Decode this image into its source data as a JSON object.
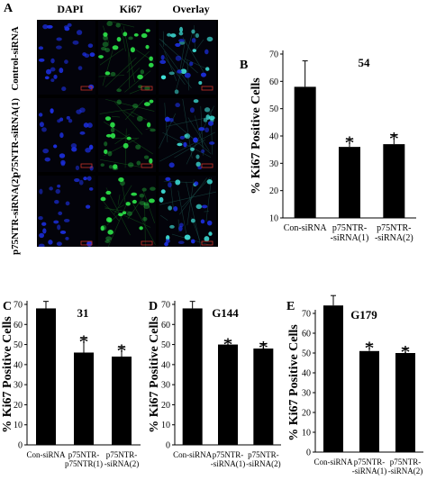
{
  "panel_a": {
    "letter": "A",
    "columns": [
      "DAPI",
      "Ki67",
      "Overlay"
    ],
    "rows": [
      "Control-siRNA",
      "p75NTR-siRNA(1)",
      "p75NTR-siRNA(2)"
    ],
    "colors": {
      "dapi": "#1c2fe0",
      "ki67": "#2ee84a",
      "overlay": "#3fe0d8"
    }
  },
  "chart_data": [
    {
      "panel": "B",
      "type": "bar",
      "title": "54",
      "ylabel": "% Ki67 Positive Cells",
      "ylim": [
        10,
        70
      ],
      "yticks": [
        10,
        20,
        30,
        40,
        50,
        60,
        70
      ],
      "categories": [
        "Con-siRNA",
        "p75NTR-\n-siRNA(1)",
        "p75NTR-\n-siRNA(2)"
      ],
      "values": [
        58,
        36,
        37
      ],
      "errors": [
        9.5,
        3,
        3.5
      ],
      "significant": [
        false,
        true,
        true
      ],
      "marker": "*"
    },
    {
      "panel": "C",
      "type": "bar",
      "title": "31",
      "ylabel": "% Ki67 Positive Cells",
      "ylim": [
        0,
        70
      ],
      "yticks": [
        0,
        10,
        20,
        30,
        40,
        50,
        60,
        70
      ],
      "categories": [
        "Con-siRNA",
        "p75NTR-\np75NTR(1)",
        "p75NTR-\n-siRNA(2)"
      ],
      "values": [
        68,
        46,
        44
      ],
      "errors": [
        3.5,
        7.5,
        5
      ],
      "significant": [
        false,
        true,
        true
      ],
      "marker": "*"
    },
    {
      "panel": "D",
      "type": "bar",
      "title": "G144",
      "ylabel": "% Ki67 Positive Cells",
      "ylim": [
        0,
        70
      ],
      "yticks": [
        0,
        10,
        20,
        30,
        40,
        50,
        60,
        70
      ],
      "categories": [
        "Con-siRNA",
        "p75NTR-\n-siRNA(1)",
        "p75NTR-\n-siRNA(2)"
      ],
      "values": [
        68,
        50,
        48
      ],
      "errors": [
        3.5,
        2,
        2.5
      ],
      "significant": [
        false,
        true,
        true
      ],
      "marker": "*"
    },
    {
      "panel": "E",
      "type": "bar",
      "title": "G179",
      "ylabel": "% Ki67 Positive Cells",
      "ylim": [
        0,
        70
      ],
      "yticks": [
        0,
        10,
        20,
        30,
        40,
        50,
        60,
        70
      ],
      "categories": [
        "Con-siRNA",
        "p75NTR-\n-siRNA(1)",
        "p75NTR-\n-siRNA(2)"
      ],
      "values": [
        74,
        51,
        50
      ],
      "errors": [
        5,
        3.5,
        2.5
      ],
      "significant": [
        false,
        true,
        true
      ],
      "marker": "*"
    }
  ]
}
